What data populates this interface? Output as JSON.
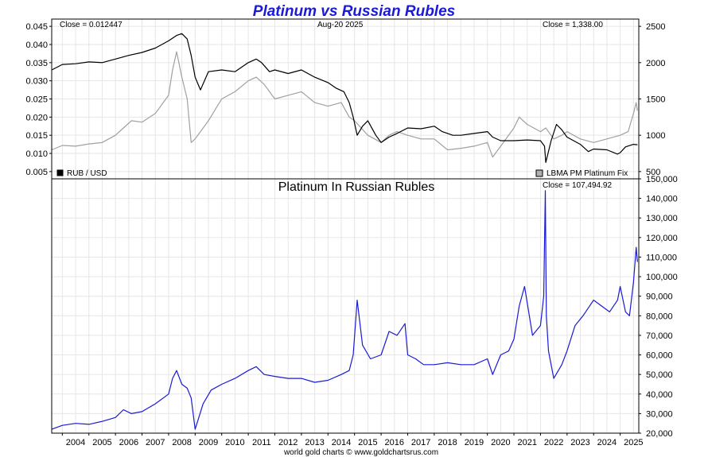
{
  "chart_data": [
    {
      "type": "line",
      "title": "Platinum vs Russian Rubles",
      "date_label": "Aug-20  2025",
      "left_close_label": "Close = 0.012447",
      "right_close_label": "Close = 1,338.00",
      "xlim": [
        2003.6,
        2025.7
      ],
      "x_ticks": [
        "2004",
        "2005",
        "2006",
        "2007",
        "2008",
        "2009",
        "2010",
        "2011",
        "2012",
        "2013",
        "2014",
        "2015",
        "2016",
        "2017",
        "2018",
        "2019",
        "2020",
        "2021",
        "2022",
        "2023",
        "2024",
        "2025"
      ],
      "y_left_lim": [
        0.003,
        0.047
      ],
      "y_left_ticks": [
        "0.005",
        "0.010",
        "0.015",
        "0.020",
        "0.025",
        "0.030",
        "0.035",
        "0.040",
        "0.045"
      ],
      "y_right_lim": [
        400,
        2600
      ],
      "y_right_ticks": [
        "500",
        "1000",
        "1500",
        "2000",
        "2500"
      ],
      "series": [
        {
          "name": "RUB / USD",
          "axis": "left",
          "color": "#000000",
          "x": [
            2003.6,
            2004.0,
            2004.5,
            2005.0,
            2005.5,
            2006.0,
            2006.5,
            2007.0,
            2007.5,
            2008.0,
            2008.3,
            2008.5,
            2008.7,
            2008.85,
            2009.0,
            2009.2,
            2009.5,
            2010.0,
            2010.5,
            2011.0,
            2011.3,
            2011.5,
            2011.8,
            2012.0,
            2012.5,
            2013.0,
            2013.5,
            2014.0,
            2014.3,
            2014.6,
            2014.8,
            2014.95,
            2015.1,
            2015.3,
            2015.5,
            2015.8,
            2016.0,
            2016.3,
            2016.6,
            2017.0,
            2017.5,
            2018.0,
            2018.3,
            2018.7,
            2019.0,
            2019.5,
            2020.0,
            2020.2,
            2020.5,
            2021.0,
            2021.5,
            2022.0,
            2022.15,
            2022.2,
            2022.4,
            2022.6,
            2022.8,
            2023.0,
            2023.5,
            2023.8,
            2024.0,
            2024.5,
            2024.9,
            2025.0,
            2025.2,
            2025.5,
            2025.65
          ],
          "y": [
            0.033,
            0.0345,
            0.0347,
            0.0352,
            0.035,
            0.036,
            0.037,
            0.0378,
            0.039,
            0.041,
            0.0425,
            0.043,
            0.0415,
            0.037,
            0.031,
            0.0275,
            0.0325,
            0.033,
            0.0325,
            0.035,
            0.036,
            0.035,
            0.0325,
            0.033,
            0.032,
            0.033,
            0.031,
            0.0295,
            0.028,
            0.027,
            0.024,
            0.02,
            0.015,
            0.0175,
            0.019,
            0.015,
            0.013,
            0.0145,
            0.0155,
            0.017,
            0.0168,
            0.0175,
            0.016,
            0.015,
            0.015,
            0.0155,
            0.016,
            0.0145,
            0.0135,
            0.0135,
            0.0137,
            0.0135,
            0.012,
            0.0075,
            0.0135,
            0.018,
            0.0165,
            0.0145,
            0.0125,
            0.0105,
            0.0112,
            0.011,
            0.0098,
            0.0102,
            0.0118,
            0.0125,
            0.0124
          ]
        },
        {
          "name": "LBMA PM Platinum Fix",
          "axis": "right",
          "color": "#a0a0a0",
          "x": [
            2003.6,
            2004.0,
            2004.5,
            2005.0,
            2005.5,
            2006.0,
            2006.3,
            2006.6,
            2007.0,
            2007.5,
            2008.0,
            2008.15,
            2008.3,
            2008.5,
            2008.7,
            2008.85,
            2009.0,
            2009.5,
            2010.0,
            2010.5,
            2011.0,
            2011.3,
            2011.6,
            2012.0,
            2012.5,
            2013.0,
            2013.5,
            2014.0,
            2014.5,
            2014.8,
            2015.0,
            2015.5,
            2016.0,
            2016.3,
            2016.6,
            2017.0,
            2017.5,
            2018.0,
            2018.5,
            2019.0,
            2019.5,
            2020.0,
            2020.2,
            2020.5,
            2021.0,
            2021.2,
            2021.5,
            2022.0,
            2022.2,
            2022.5,
            2022.8,
            2023.0,
            2023.5,
            2024.0,
            2024.5,
            2025.0,
            2025.3,
            2025.5,
            2025.6,
            2025.65
          ],
          "y": [
            800,
            860,
            850,
            880,
            900,
            1000,
            1100,
            1200,
            1180,
            1300,
            1550,
            1900,
            2150,
            1800,
            1500,
            900,
            950,
            1200,
            1500,
            1600,
            1750,
            1800,
            1700,
            1500,
            1550,
            1600,
            1450,
            1400,
            1450,
            1250,
            1200,
            1000,
            900,
            1000,
            1050,
            1000,
            950,
            950,
            800,
            820,
            850,
            900,
            700,
            850,
            1100,
            1250,
            1150,
            1050,
            1100,
            950,
            1000,
            1050,
            950,
            900,
            950,
            1000,
            1050,
            1300,
            1450,
            1338
          ]
        }
      ]
    },
    {
      "type": "line",
      "title": "Platinum In Russian Rubles",
      "close_label": "Close = 107,494.92",
      "xlim": [
        2003.6,
        2025.7
      ],
      "ylim": [
        20000,
        150000
      ],
      "y_ticks": [
        "20,000",
        "30,000",
        "40,000",
        "50,000",
        "60,000",
        "70,000",
        "80,000",
        "90,000",
        "100,000",
        "110,000",
        "120,000",
        "130,000",
        "140,000",
        "150,000"
      ],
      "series": [
        {
          "name": "Platinum In Russian Rubles",
          "color": "#1a1ad6",
          "x": [
            2003.6,
            2004.0,
            2004.5,
            2005.0,
            2005.5,
            2006.0,
            2006.3,
            2006.6,
            2007.0,
            2007.5,
            2008.0,
            2008.15,
            2008.3,
            2008.5,
            2008.7,
            2008.85,
            2009.0,
            2009.3,
            2009.6,
            2010.0,
            2010.5,
            2011.0,
            2011.3,
            2011.6,
            2012.0,
            2012.5,
            2013.0,
            2013.5,
            2014.0,
            2014.5,
            2014.8,
            2014.95,
            2015.1,
            2015.3,
            2015.6,
            2016.0,
            2016.3,
            2016.6,
            2016.9,
            2017.0,
            2017.3,
            2017.6,
            2018.0,
            2018.5,
            2019.0,
            2019.5,
            2020.0,
            2020.2,
            2020.5,
            2020.8,
            2021.0,
            2021.2,
            2021.4,
            2021.7,
            2022.0,
            2022.12,
            2022.18,
            2022.22,
            2022.3,
            2022.5,
            2022.8,
            2023.0,
            2023.3,
            2023.6,
            2024.0,
            2024.3,
            2024.6,
            2024.9,
            2025.0,
            2025.2,
            2025.35,
            2025.5,
            2025.6,
            2025.65
          ],
          "y": [
            22000,
            24000,
            25000,
            24500,
            26000,
            28000,
            32000,
            30000,
            31000,
            35000,
            40000,
            48000,
            52000,
            45000,
            43000,
            38000,
            22000,
            35000,
            42000,
            45000,
            48000,
            52000,
            54000,
            50000,
            49000,
            48000,
            48000,
            46000,
            47000,
            50000,
            52000,
            60000,
            88000,
            65000,
            58000,
            60000,
            72000,
            70000,
            76000,
            60000,
            58000,
            55000,
            55000,
            56000,
            55000,
            55000,
            58000,
            50000,
            60000,
            62000,
            68000,
            85000,
            95000,
            70000,
            75000,
            90000,
            144000,
            80000,
            62000,
            48000,
            55000,
            62000,
            75000,
            80000,
            88000,
            85000,
            82000,
            88000,
            95000,
            82000,
            80000,
            97000,
            115000,
            107495
          ]
        }
      ]
    }
  ],
  "legend": {
    "left": "RUB / USD",
    "right": "LBMA PM Platinum Fix"
  },
  "footer": "world gold charts © www.goldchartsrus.com"
}
